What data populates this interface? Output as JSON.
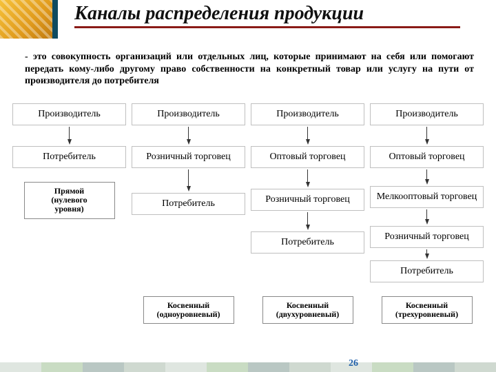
{
  "title": "Каналы распределения продукции",
  "subtitle": "- это совокупность организаций или отдельных лиц, которые принимают на себя или помогают передать кому-либо другому право собственности на конкретный товар или услугу на пути от производителя до потребителя",
  "page_number": "26",
  "colors": {
    "title_underline": "#8a1a17",
    "grid_border": "#bfbfbf",
    "box_border": "#888888",
    "arrow": "#333333",
    "background": "#ffffff",
    "page_number": "#1d5ea8",
    "corner_accent": "#0f4b60"
  },
  "fontsizes": {
    "title": 28,
    "subtitle": 14,
    "cell": 14,
    "label": 12
  },
  "footer_squares": [
    "#dfe6e0",
    "#c9dcc3",
    "#b9c7c3",
    "#cfd9d0",
    "#dfe6e0",
    "#c9dcc3",
    "#b9c7c3",
    "#cfd9d0",
    "#dfe6e0",
    "#c9dcc3",
    "#b9c7c3",
    "#cfd9d0"
  ],
  "columns": [
    {
      "nodes": [
        "Производитель",
        "Потребитель"
      ],
      "arrow_heights": [
        18
      ],
      "label": "Прямой\n(нулевого\nуровня)",
      "label_position": "mid"
    },
    {
      "nodes": [
        "Производитель",
        "Розничный торговец",
        "Потребитель"
      ],
      "arrow_heights": [
        18,
        24
      ],
      "label": "Косвенный\n(одноуровневый)",
      "label_position": "bottom"
    },
    {
      "nodes": [
        "Производитель",
        "Оптовый торговец",
        "Розничный торговец",
        "Потребитель"
      ],
      "arrow_heights": [
        18,
        18,
        18
      ],
      "label": "Косвенный\n(двухуровневый)",
      "label_position": "bottom"
    },
    {
      "nodes": [
        "Производитель",
        "Оптовый торговец",
        "Мелкооптовый торговец",
        "Розничный торговец",
        "Потребитель"
      ],
      "arrow_heights": [
        18,
        14,
        14,
        6
      ],
      "label": "Косвенный\n(трехуровневый)",
      "label_position": "bottom"
    }
  ]
}
